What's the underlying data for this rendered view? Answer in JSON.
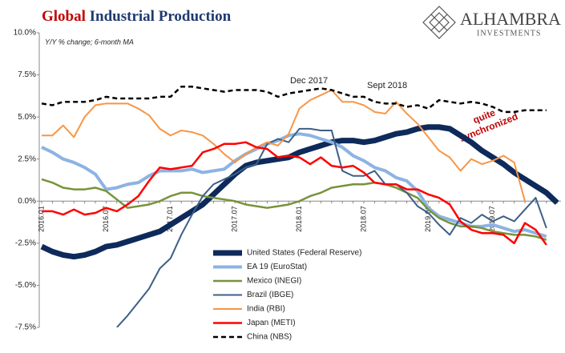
{
  "brand": {
    "name": "ALHAMBRA",
    "tagline": "INVESTMENTS"
  },
  "chart_data": {
    "type": "line",
    "title": "Global Industrial Production",
    "subtitle": "Y/Y % change; 6-month MA",
    "annotations": [
      "Dec 2017",
      "Sept 2018",
      "quite",
      "synchronized"
    ],
    "categories": [
      "2016.01",
      null,
      null,
      null,
      null,
      null,
      "2016.07",
      null,
      null,
      null,
      null,
      null,
      "2017.01",
      null,
      null,
      null,
      null,
      null,
      "2017.07",
      null,
      null,
      null,
      null,
      null,
      "2018.01",
      null,
      null,
      null,
      null,
      null,
      "2018.07",
      null,
      null,
      null,
      null,
      null,
      "2019.01",
      null,
      null,
      null,
      null,
      null,
      "2019.07",
      null,
      null,
      null,
      null,
      null,
      null
    ],
    "ylim": [
      -7.5,
      10
    ],
    "yticks": [
      {
        "value": -7.5,
        "label": "-7.5%"
      },
      {
        "value": -5,
        "label": "-5.0%"
      },
      {
        "value": -2.5,
        "label": "-2.5%"
      },
      {
        "value": 0,
        "label": "0.0%"
      },
      {
        "value": 2.5,
        "label": "2.5%"
      },
      {
        "value": 5,
        "label": "5.0%"
      },
      {
        "value": 7.5,
        "label": "7.5%"
      },
      {
        "value": 10,
        "label": "10.0%"
      }
    ],
    "legend": "bottom-center",
    "series": [
      {
        "name": "United States (Federal Reserve)",
        "color": "#0d2a5a",
        "width": 7,
        "values": [
          -2.7,
          -3.0,
          -3.2,
          -3.3,
          -3.2,
          -3.0,
          -2.7,
          -2.6,
          -2.4,
          -2.2,
          -2.0,
          -1.8,
          -1.4,
          -1.0,
          -0.6,
          -0.2,
          0.4,
          1.0,
          1.6,
          2.1,
          2.3,
          2.4,
          2.5,
          2.6,
          2.9,
          3.1,
          3.3,
          3.5,
          3.6,
          3.6,
          3.5,
          3.6,
          3.8,
          4.0,
          4.1,
          4.3,
          4.4,
          4.4,
          4.3,
          3.9,
          3.5,
          3.0,
          2.6,
          2.2,
          1.7,
          1.3,
          0.9,
          0.5,
          -0.1
        ]
      },
      {
        "name": "EA 19 (EuroStat)",
        "color": "#8db3e2",
        "width": 4,
        "values": [
          3.2,
          2.9,
          2.5,
          2.3,
          2.0,
          1.6,
          0.7,
          0.8,
          1.0,
          1.1,
          1.5,
          1.8,
          1.8,
          1.8,
          1.9,
          1.7,
          1.8,
          1.9,
          2.4,
          2.8,
          3.1,
          3.4,
          3.6,
          3.9,
          4.0,
          3.9,
          3.7,
          3.5,
          3.2,
          2.7,
          2.4,
          2.0,
          1.8,
          1.4,
          1.2,
          0.6,
          -0.4,
          -0.9,
          -1.1,
          -1.3,
          -1.5,
          -1.5,
          -1.4,
          -1.6,
          -1.8,
          -1.7,
          -1.9,
          -2.1,
          null
        ]
      },
      {
        "name": "Mexico (INEGI)",
        "color": "#77933c",
        "width": 2.5,
        "values": [
          1.3,
          1.1,
          0.8,
          0.7,
          0.7,
          0.8,
          0.6,
          0.1,
          -0.4,
          -0.3,
          -0.2,
          0.0,
          0.3,
          0.5,
          0.5,
          0.3,
          0.2,
          0.1,
          0.0,
          -0.2,
          -0.3,
          -0.4,
          -0.3,
          -0.2,
          0.0,
          0.3,
          0.5,
          0.8,
          0.9,
          1.0,
          1.0,
          1.1,
          1.0,
          0.8,
          0.5,
          0.2,
          -0.5,
          -1.0,
          -1.3,
          -1.5,
          -1.5,
          -1.6,
          -1.8,
          -1.9,
          -2.0,
          -2.0,
          -2.1,
          -2.3,
          null
        ]
      },
      {
        "name": "Brazil (IBGE)",
        "color": "#3c5f88",
        "width": 2,
        "values": [
          null,
          null,
          null,
          null,
          null,
          null,
          null,
          -7.5,
          -6.8,
          -6.0,
          -5.2,
          -4.0,
          -3.4,
          -2.0,
          -0.8,
          0.3,
          1.0,
          1.3,
          1.6,
          2.0,
          2.2,
          3.4,
          3.7,
          3.5,
          4.3,
          4.3,
          4.2,
          4.2,
          1.8,
          1.5,
          1.5,
          1.8,
          1.0,
          1.0,
          0.5,
          -0.3,
          -0.7,
          -1.4,
          -2.0,
          -1.0,
          -1.3,
          -0.8,
          -1.2,
          -0.9,
          -1.2,
          -0.5,
          0.2,
          -1.6,
          null
        ]
      },
      {
        "name": "India (RBI)",
        "color": "#f79646",
        "width": 2,
        "values": [
          3.9,
          3.9,
          4.5,
          3.8,
          5.0,
          5.7,
          5.8,
          5.8,
          5.8,
          5.5,
          5.1,
          4.3,
          3.9,
          4.2,
          4.1,
          3.9,
          3.4,
          2.8,
          2.3,
          2.8,
          3.2,
          3.5,
          3.3,
          4.0,
          5.5,
          6.0,
          6.3,
          6.6,
          5.9,
          5.9,
          5.7,
          5.3,
          5.2,
          5.9,
          5.2,
          4.6,
          3.8,
          3.0,
          2.6,
          1.8,
          2.5,
          2.2,
          2.4,
          2.7,
          2.3,
          0.0,
          null,
          null,
          null
        ]
      },
      {
        "name": "Japan (METI)",
        "color": "#ff0000",
        "width": 2.5,
        "values": [
          -0.6,
          -0.6,
          -0.8,
          -0.5,
          -0.8,
          -0.7,
          -0.4,
          -0.6,
          -0.2,
          0.3,
          1.2,
          2.0,
          1.9,
          2.0,
          2.1,
          2.9,
          3.1,
          3.4,
          3.4,
          3.5,
          3.2,
          3.1,
          2.6,
          2.7,
          2.6,
          2.2,
          2.6,
          2.1,
          2.0,
          2.1,
          1.7,
          1.1,
          1.0,
          1.0,
          0.7,
          0.7,
          0.4,
          0.2,
          -0.2,
          -1.2,
          -1.7,
          -1.9,
          -1.9,
          -2.0,
          -2.5,
          -1.3,
          -1.7,
          -2.6,
          null
        ]
      },
      {
        "name": "China (NBS)",
        "color": "#000000",
        "width": 2.5,
        "dash": true,
        "values": [
          5.8,
          5.7,
          5.9,
          5.9,
          5.9,
          6.0,
          6.2,
          6.1,
          6.1,
          6.1,
          6.1,
          6.2,
          6.2,
          6.8,
          6.8,
          6.7,
          6.6,
          6.5,
          6.6,
          6.6,
          6.6,
          6.5,
          6.2,
          6.4,
          6.5,
          6.6,
          6.7,
          6.6,
          6.4,
          6.2,
          6.2,
          5.9,
          5.8,
          5.8,
          5.6,
          5.7,
          5.5,
          6.0,
          5.9,
          5.8,
          5.9,
          5.8,
          5.6,
          5.3,
          5.3,
          5.4,
          5.4,
          5.4,
          null
        ]
      }
    ]
  }
}
